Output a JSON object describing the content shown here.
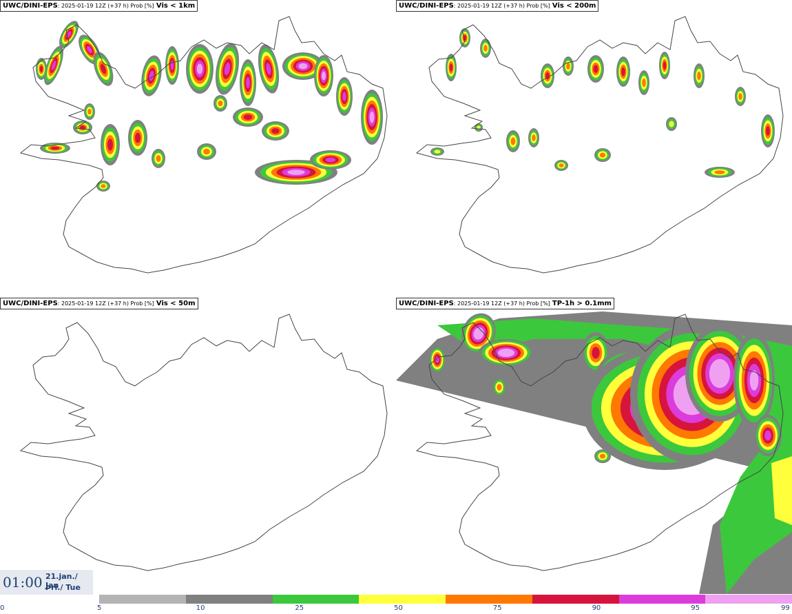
{
  "panels": [
    {
      "source": "UWC/DINI-EPS",
      "meta": ": 2025-01-19 12Z (+37 h) Prob [%]",
      "variable": "Vis < 1km"
    },
    {
      "source": "UWC/DINI-EPS",
      "meta": ": 2025-01-19 12Z (+37 h) Prob [%]",
      "variable": "Vis < 200m"
    },
    {
      "source": "UWC/DINI-EPS",
      "meta": ": 2025-01-19 12Z (+37 h) Prob [%]",
      "variable": "Vis < 50m"
    },
    {
      "source": "UWC/DINI-EPS",
      "meta": ": 2025-01-19 12Z (+37 h) Prob [%]",
      "variable": "TP-1h > 0.1mm"
    }
  ],
  "time": {
    "hour": "01:00",
    "date": "21.jan./ Jan",
    "day": "Þri./ Tue"
  },
  "colorbar": {
    "ticks": [
      "0",
      "5",
      "10",
      "25",
      "50",
      "75",
      "90",
      "95",
      "99"
    ],
    "colors": [
      "#ffffff",
      "#b4b4b4",
      "#808080",
      "#3cc83c",
      "#ffff3c",
      "#ff7800",
      "#d7143c",
      "#dc3cdc",
      "#f0a0f0"
    ]
  }
}
